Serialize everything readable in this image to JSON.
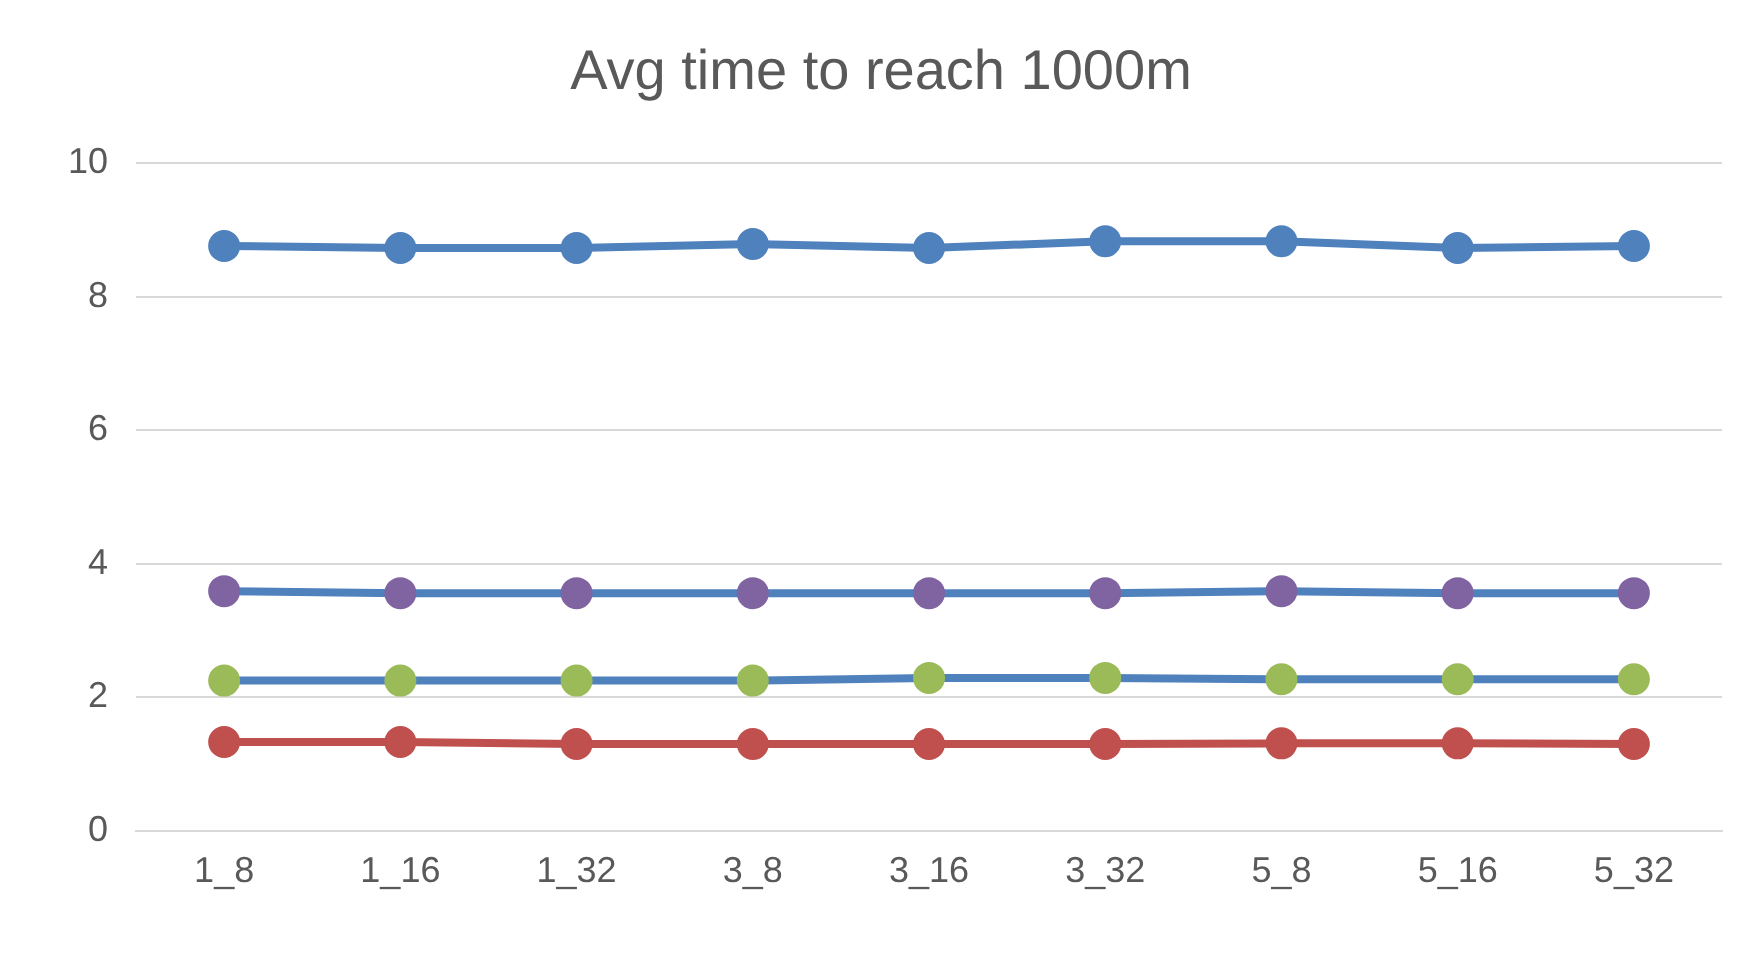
{
  "chart_data": {
    "type": "line",
    "title": "Avg time to reach 1000m",
    "categories": [
      "1_8",
      "1_16",
      "1_32",
      "3_8",
      "3_16",
      "3_32",
      "5_8",
      "5_16",
      "5_32"
    ],
    "series": [
      {
        "color": "#4f81bd",
        "values": [
          8.76,
          8.73,
          8.73,
          8.79,
          8.73,
          8.83,
          8.83,
          8.73,
          8.76
        ]
      },
      {
        "color": "#4f81bd",
        "colors": [
          "#8064a2",
          "#8064a2",
          "#8064a2",
          "#8064a2",
          "#8064a2",
          "#8064a2",
          "#8064a2",
          "#8064a2",
          "#8064a2"
        ],
        "values": [
          3.59,
          3.56,
          3.56,
          3.56,
          3.56,
          3.56,
          3.59,
          3.56,
          3.56
        ]
      },
      {
        "color": "#4f81bd",
        "colors": [
          "#9bbb59",
          "#9bbb59",
          "#9bbb59",
          "#9bbb59",
          "#9bbb59",
          "#9bbb59",
          "#9bbb59",
          "#9bbb59",
          "#9bbb59"
        ],
        "values": [
          2.25,
          2.25,
          2.25,
          2.25,
          2.29,
          2.29,
          2.27,
          2.27,
          2.27
        ]
      },
      {
        "color": "#c0504d",
        "values": [
          1.33,
          1.33,
          1.3,
          1.3,
          1.3,
          1.3,
          1.31,
          1.31,
          1.3
        ]
      }
    ],
    "ylim": [
      0,
      10
    ],
    "yticks": [
      0,
      2,
      4,
      6,
      8,
      10
    ],
    "grid": "y",
    "legend": false,
    "marker": "circle",
    "line_style": "solid"
  }
}
